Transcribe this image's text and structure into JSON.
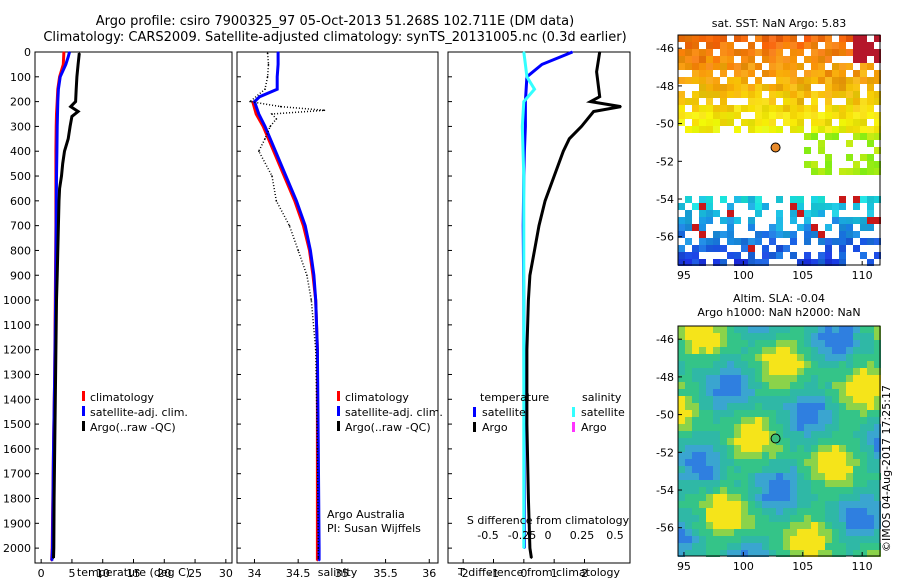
{
  "title_line1": "Argo profile: csiro 7900325_97 05-Oct-2013 51.268S 102.711E (DM data)",
  "title_line2": "Climatology: CARS2009. Satellite-adjusted climatology: synTS_20131005.nc (0.3d earlier)",
  "credit": "Argo Australia",
  "pi": "PI: Susan Wijffels",
  "watermark": "©IMOS 04-Aug-2017 17:25:17",
  "colors": {
    "climatology": "#ff0000",
    "satellite": "#0000ff",
    "argo": "#000000",
    "salinity_sat": "#33ffff",
    "salinity_argo": "#ff33ff"
  },
  "chart_data": [
    {
      "type": "line",
      "xlabel": "temperature (deg C)",
      "ylabel": "",
      "xlim": [
        -1,
        31
      ],
      "ylim": [
        2060,
        0
      ],
      "xticks": [
        "0",
        "5",
        "10",
        "15",
        "20",
        "25",
        "30"
      ],
      "yticks": [
        "0",
        "100",
        "200",
        "300",
        "400",
        "500",
        "600",
        "700",
        "800",
        "900",
        "1000",
        "1100",
        "1200",
        "1300",
        "1400",
        "1500",
        "1600",
        "1700",
        "1800",
        "1900",
        "2000"
      ],
      "legend": [
        "climatology",
        "satellite-adj. clim.",
        "Argo(..raw -QC)"
      ],
      "legend_position": "bottom-center",
      "series": [
        {
          "name": "climatology",
          "color": "#ff0000",
          "depth": [
            0,
            50,
            100,
            150,
            200,
            250,
            300,
            400,
            500,
            700,
            1000,
            1300,
            1600,
            2000,
            2050
          ],
          "values": [
            3.7,
            3.6,
            3.0,
            2.7,
            2.6,
            2.5,
            2.45,
            2.4,
            2.4,
            2.4,
            2.3,
            2.2,
            2.0,
            1.8,
            1.7
          ]
        },
        {
          "name": "satellite-adj. clim.",
          "color": "#0000ff",
          "depth": [
            0,
            20,
            50,
            100,
            150,
            200,
            300,
            400,
            500,
            700,
            1000,
            1300,
            1600,
            2000,
            2050
          ],
          "values": [
            4.6,
            4.4,
            4.0,
            3.1,
            2.8,
            2.7,
            2.6,
            2.55,
            2.5,
            2.45,
            2.35,
            2.2,
            2.0,
            1.85,
            1.75
          ]
        },
        {
          "name": "Argo(..raw -QC)",
          "color": "#000000",
          "depth": [
            5,
            50,
            100,
            150,
            200,
            220,
            240,
            260,
            300,
            350,
            400,
            450,
            500,
            550,
            600,
            700,
            800,
            900,
            1000,
            1100,
            1200,
            1400,
            1600,
            1800,
            2000,
            2040
          ],
          "values": [
            6.2,
            6.0,
            5.8,
            5.7,
            5.6,
            4.8,
            6.0,
            5.0,
            4.7,
            4.4,
            3.8,
            3.5,
            3.3,
            3.0,
            2.9,
            2.8,
            2.7,
            2.6,
            2.5,
            2.45,
            2.4,
            2.3,
            2.2,
            2.1,
            2.05,
            2.0
          ]
        }
      ]
    },
    {
      "type": "line",
      "xlabel": "salinity",
      "xlim": [
        33.8,
        36.1
      ],
      "ylim": [
        2060,
        0
      ],
      "xticks": [
        "34",
        "34.5",
        "35",
        "35.5",
        "36"
      ],
      "legend": [
        "climatology",
        "satellite-adj. clim.",
        "Argo(..raw -QC)"
      ],
      "legend_position": "bottom-center",
      "series": [
        {
          "name": "climatology",
          "color": "#ff0000",
          "depth": [
            200,
            250,
            300,
            400,
            500,
            600,
            700,
            800,
            900,
            1000,
            1200,
            1600,
            2000,
            2050
          ],
          "values": [
            33.98,
            34.02,
            34.1,
            34.22,
            34.34,
            34.46,
            34.56,
            34.63,
            34.67,
            34.7,
            34.72,
            34.72,
            34.72,
            34.72
          ]
        },
        {
          "name": "satellite-adj. clim.",
          "color": "#0000ff",
          "depth": [
            0,
            50,
            100,
            150,
            180,
            200,
            250,
            300,
            400,
            500,
            600,
            700,
            800,
            900,
            1000,
            1200,
            1600,
            2000,
            2050
          ],
          "values": [
            34.27,
            34.27,
            34.26,
            34.26,
            34.06,
            34.0,
            34.05,
            34.12,
            34.24,
            34.36,
            34.48,
            34.58,
            34.64,
            34.68,
            34.7,
            34.72,
            34.73,
            34.74,
            34.74
          ]
        },
        {
          "name": "Argo(..raw -QC)",
          "color": "#000000",
          "depth": [
            5,
            50,
            100,
            150,
            200,
            220,
            235,
            250,
            270,
            300,
            350,
            400,
            500,
            600,
            700,
            800,
            900,
            1000,
            1200,
            1600,
            2000,
            2040
          ],
          "values": [
            34.15,
            34.16,
            34.15,
            34.12,
            33.95,
            34.3,
            34.8,
            34.2,
            34.25,
            34.18,
            34.12,
            34.05,
            34.2,
            34.25,
            34.4,
            34.5,
            34.6,
            34.65,
            34.7,
            34.72,
            34.73,
            34.73
          ]
        }
      ]
    },
    {
      "type": "line",
      "xlabel": "T difference from climatology",
      "title_bottom": "S difference from climatology",
      "xlim": [
        -2.5,
        3.5
      ],
      "ylim": [
        2060,
        0
      ],
      "xticks": [
        "-2",
        "-1",
        "0",
        "1",
        "2"
      ],
      "sticks": [
        "-0.5",
        "-0.25",
        "0",
        "0.25",
        "0.5"
      ],
      "legend": [
        "temperature",
        "salinity",
        "satellite",
        "satellite",
        "Argo",
        "Argo"
      ],
      "series": [
        {
          "name": "satellite",
          "color": "#0000ff",
          "depth": [
            0,
            20,
            50,
            100,
            200,
            300,
            400,
            500,
            700,
            1000,
            1500,
            2000
          ],
          "values": [
            1.6,
            1.2,
            0.6,
            0.1,
            0.05,
            0.05,
            0.02,
            0.0,
            -0.02,
            0.0,
            0.01,
            0.02
          ]
        },
        {
          "name": "satellite",
          "color": "#33ffff",
          "depth": [
            0,
            50,
            100,
            150,
            200,
            300,
            500,
            700,
            1000,
            1500,
            2000
          ],
          "values": [
            0.0,
            0.05,
            0.1,
            0.35,
            0.0,
            -0.05,
            0.0,
            0.0,
            0.0,
            0.0,
            0.0
          ]
        },
        {
          "name": "Argo",
          "color": "#000000",
          "depth": [
            0,
            80,
            180,
            200,
            220,
            240,
            300,
            350,
            400,
            500,
            600,
            700,
            800,
            900,
            1000,
            1200,
            1500,
            1800,
            2000,
            2040
          ],
          "values": [
            2.5,
            2.4,
            2.5,
            2.2,
            3.2,
            2.3,
            1.9,
            1.5,
            1.3,
            1.0,
            0.7,
            0.5,
            0.35,
            0.2,
            0.15,
            0.1,
            0.1,
            0.15,
            0.2,
            0.25
          ]
        }
      ]
    },
    {
      "type": "heatmap",
      "title": "sat. SST: NaN Argo: 5.83",
      "xlim": [
        94.5,
        111.5
      ],
      "ylim": [
        -57.5,
        -45.3
      ],
      "xticks": [
        "95",
        "100",
        "105",
        "110"
      ],
      "yticks": [
        "-46",
        "-48",
        "-50",
        "-52",
        "-54",
        "-56"
      ],
      "marker": {
        "lon": 102.711,
        "lat": -51.268
      }
    },
    {
      "type": "heatmap",
      "title": "Altim. SLA: -0.04",
      "subtitle": "Argo h1000: NaN h2000: NaN",
      "xlim": [
        94.5,
        111.5
      ],
      "ylim": [
        -57.5,
        -45.3
      ],
      "xticks": [
        "95",
        "100",
        "105",
        "110"
      ],
      "yticks": [
        "-46",
        "-48",
        "-50",
        "-52",
        "-54",
        "-56"
      ],
      "marker": {
        "lon": 102.711,
        "lat": -51.268
      }
    }
  ]
}
